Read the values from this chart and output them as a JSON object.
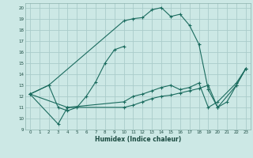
{
  "xlabel": "Humidex (Indice chaleur)",
  "bg_color": "#cce8e5",
  "grid_color": "#aaccca",
  "line_color": "#1a6b5e",
  "xlim": [
    -0.5,
    23.5
  ],
  "ylim": [
    9,
    20.4
  ],
  "xticks": [
    0,
    1,
    2,
    3,
    4,
    5,
    6,
    7,
    8,
    9,
    10,
    11,
    12,
    13,
    14,
    15,
    16,
    17,
    18,
    19,
    20,
    21,
    22,
    23
  ],
  "yticks": [
    9,
    10,
    11,
    12,
    13,
    14,
    15,
    16,
    17,
    18,
    19,
    20
  ],
  "series": [
    {
      "x": [
        0,
        2,
        10,
        11,
        12,
        13,
        14,
        15,
        16,
        17,
        18,
        19,
        20,
        21,
        22,
        23
      ],
      "y": [
        12.2,
        13.0,
        18.8,
        19.0,
        19.1,
        19.8,
        20.0,
        19.2,
        19.4,
        18.4,
        16.7,
        12.6,
        11.0,
        11.5,
        13.0,
        14.5
      ]
    },
    {
      "x": [
        0,
        2,
        3,
        4,
        5,
        6,
        7,
        8,
        9,
        10
      ],
      "y": [
        12.2,
        13.0,
        11.0,
        10.7,
        11.0,
        12.0,
        13.3,
        15.0,
        16.2,
        16.5
      ]
    },
    {
      "x": [
        0,
        3,
        4,
        10,
        11,
        12,
        13,
        14,
        15,
        16,
        17,
        18,
        19,
        20,
        22,
        23
      ],
      "y": [
        12.2,
        9.5,
        11.0,
        11.0,
        11.2,
        11.5,
        11.8,
        12.0,
        12.1,
        12.3,
        12.5,
        12.7,
        13.0,
        11.0,
        13.0,
        14.5
      ]
    },
    {
      "x": [
        0,
        4,
        10,
        11,
        12,
        13,
        14,
        15,
        16,
        17,
        18,
        19,
        20,
        22,
        23
      ],
      "y": [
        12.2,
        11.0,
        11.5,
        12.0,
        12.2,
        12.5,
        12.8,
        13.0,
        12.6,
        12.8,
        13.2,
        11.0,
        11.5,
        13.2,
        14.5
      ]
    }
  ]
}
